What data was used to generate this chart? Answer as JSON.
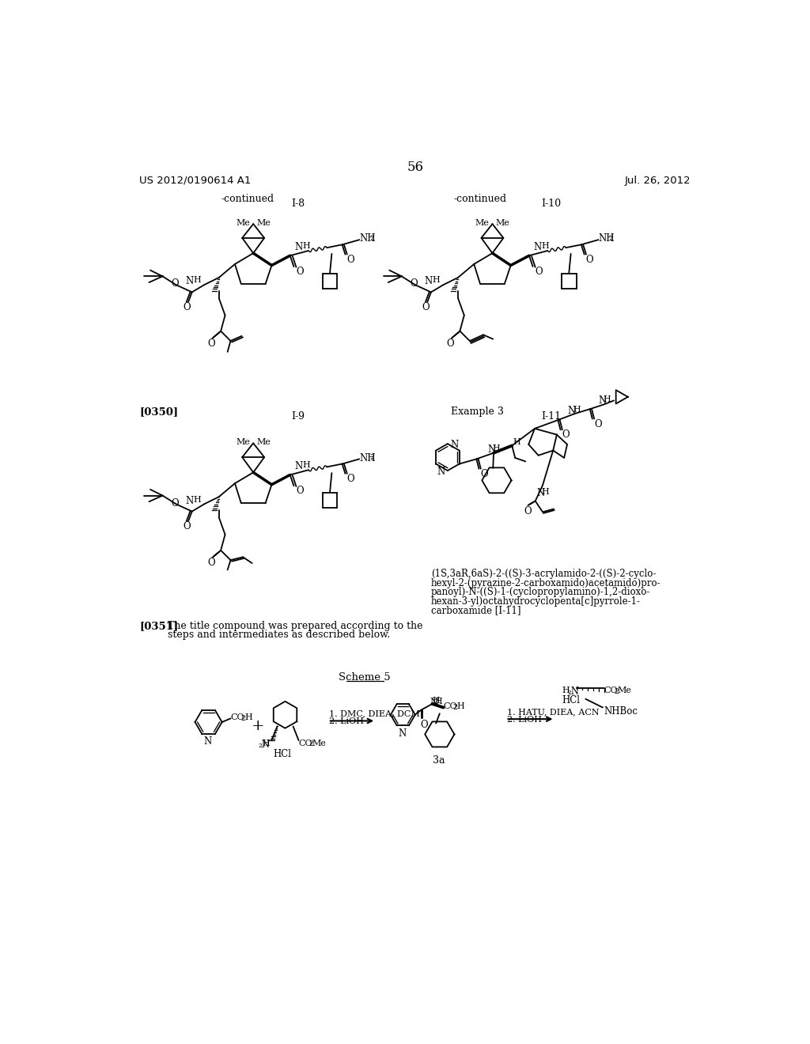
{
  "bg_color": "#ffffff",
  "header_left": "US 2012/0190614 A1",
  "header_right": "Jul. 26, 2012",
  "page_number": "56",
  "continued_left": "-continued",
  "continued_right": "-continued",
  "label_I8": "I-8",
  "label_I9": "I-9",
  "label_I10": "I-10",
  "label_I11": "I-11",
  "example3_label": "Example 3",
  "paragraph_350": "[0350]",
  "paragraph_351": "[0351]",
  "scheme5": "Scheme 5",
  "iupac_line1": "(1S,3aR,6aS)-2-((S)-3-acrylamido-2-((S)-2-cyclo-",
  "iupac_line2": "hexyl-2-(pyrazine-2-carboxamido)acetamido)pro-",
  "iupac_line3": "panoyl)-N-((S)-1-(cyclopropylamino)-1,2-dioxo-",
  "iupac_line4": "hexan-3-yl)octahydrocyclopenta[c]pyrrole-1-",
  "iupac_line5": "carboxamide [I-11]",
  "text_351a": "The title compound was prepared according to the",
  "text_351b": "steps and intermediates as described below.",
  "scheme5_step1": "1. DMC, DIEA, DCM",
  "scheme5_step2": "2. LiOH",
  "scheme5_step3": "1. HATU, DIEA, ACN",
  "scheme5_step4": "2. LiOH",
  "label_3a": "3a"
}
